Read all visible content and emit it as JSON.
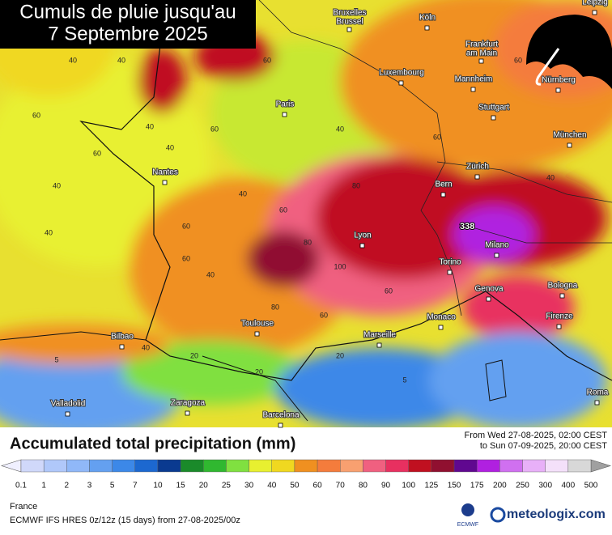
{
  "title": [
    "Cumuls de pluie jusqu'au",
    "7 Septembre 2025"
  ],
  "max_label": "338",
  "cities": [
    [
      "Bruxelles",
      "Brussel"
    ],
    [
      "Köln"
    ],
    [
      "Leipzig"
    ],
    [
      "Frankfurt",
      "am Main"
    ],
    [
      "Luxembourg"
    ],
    [
      "Mannheim"
    ],
    [
      "Nürnberg"
    ],
    [
      "Paris"
    ],
    [
      "Stuttgart"
    ],
    [
      "München"
    ],
    [
      "Nantes"
    ],
    [
      "Zürich"
    ],
    [
      "Bern"
    ],
    [
      "Lyon"
    ],
    [
      "Milano"
    ],
    [
      "Torino"
    ],
    [
      "Genova"
    ],
    [
      "Bologna"
    ],
    [
      "Bilbao"
    ],
    [
      "Toulouse"
    ],
    [
      "Marseille"
    ],
    [
      "Monaco"
    ],
    [
      "Firenze"
    ],
    [
      "Valladolid"
    ],
    [
      "Zaragoza"
    ],
    [
      "Barcelona"
    ],
    [
      "Roma"
    ]
  ],
  "contour_labels": [
    40,
    40,
    60,
    40,
    60,
    40,
    60,
    40,
    40,
    60,
    40,
    60,
    40,
    60,
    80,
    100,
    80,
    60,
    60,
    80,
    60,
    20,
    5,
    20,
    40,
    20,
    5,
    40,
    60,
    40,
    60
  ],
  "legend": {
    "title": "Accumulated total precipitation (mm)",
    "levels": [
      0.1,
      1,
      2,
      3,
      5,
      7,
      10,
      15,
      20,
      25,
      30,
      40,
      50,
      60,
      70,
      80,
      90,
      100,
      125,
      150,
      175,
      200,
      250,
      300,
      400,
      500
    ],
    "colors": [
      "#d0d8fa",
      "#b0c8fa",
      "#90b8f8",
      "#64a0f0",
      "#3c88e8",
      "#1c68d0",
      "#0a3a90",
      "#1a8a2a",
      "#30b830",
      "#80e040",
      "#e8f030",
      "#f0d820",
      "#f09020",
      "#f47c3c",
      "#f8a070",
      "#f06080",
      "#e83060",
      "#c01020",
      "#901030",
      "#600890",
      "#b020e0",
      "#d070f0",
      "#e8b0f8",
      "#f4e0fa",
      "#d8d8d8"
    ],
    "low_color": "#f0f0ff",
    "high_color": "#a0a0a0"
  },
  "period": [
    "From Wed 27-08-2025, 02:00 CEST",
    "to Sun 07-09-2025, 20:00 CEST"
  ],
  "footer": {
    "region": "France",
    "model": "ECMWF IFS HRES 0z/12z (15 days) from 27-08-2025/00z",
    "ecmwf": "ECMWF",
    "brand": "meteologix.com"
  }
}
